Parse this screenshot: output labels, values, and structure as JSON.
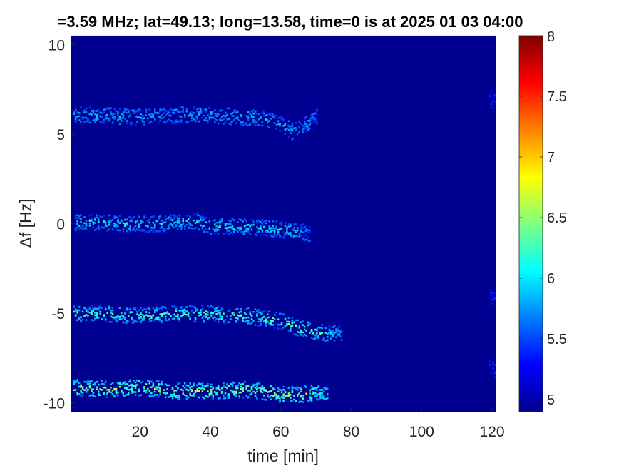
{
  "chart_data": {
    "type": "heatmap",
    "title": "=3.59 MHz;  lat=49.13; long=13.58, time=0 is at 2025 01 03 04:00",
    "xlabel": "time [min]",
    "ylabel": "Δf [Hz]",
    "xlim": [
      0.5,
      121
    ],
    "ylim": [
      -10.5,
      10.5
    ],
    "xticks": [
      20,
      40,
      60,
      80,
      100,
      120
    ],
    "yticks": [
      -10,
      -5,
      0,
      5,
      10
    ],
    "background_value": 4.95,
    "colorbar": {
      "colormap": "jet",
      "clim": [
        4.9,
        8
      ],
      "ticks": [
        5,
        5.5,
        6,
        6.5,
        7,
        7.5,
        8
      ]
    },
    "traces": [
      {
        "name": "",
        "points": [
          [
            1,
            6.1
          ],
          [
            10,
            6.1
          ],
          [
            20,
            6.0
          ],
          [
            30,
            6.1
          ],
          [
            40,
            6.1
          ],
          [
            50,
            6.0
          ],
          [
            55,
            5.9
          ],
          [
            60,
            5.6
          ],
          [
            63,
            5.2
          ],
          [
            65,
            5.3
          ],
          [
            67,
            5.6
          ],
          [
            70,
            6.0
          ]
        ],
        "intensity": [
          5.55,
          5.9
        ]
      },
      {
        "name": "",
        "points": [
          [
            1,
            0.1
          ],
          [
            10,
            0.1
          ],
          [
            20,
            0.0
          ],
          [
            30,
            0.1
          ],
          [
            35,
            0.2
          ],
          [
            40,
            -0.1
          ],
          [
            50,
            -0.1
          ],
          [
            60,
            -0.3
          ],
          [
            65,
            -0.4
          ],
          [
            68,
            -0.5
          ]
        ],
        "intensity": [
          5.5,
          6.2
        ]
      },
      {
        "name": "",
        "points": [
          [
            1,
            -5.0
          ],
          [
            10,
            -5.0
          ],
          [
            20,
            -5.1
          ],
          [
            30,
            -5.0
          ],
          [
            40,
            -5.0
          ],
          [
            50,
            -5.1
          ],
          [
            60,
            -5.4
          ],
          [
            65,
            -5.8
          ],
          [
            70,
            -6.0
          ],
          [
            77,
            -6.1
          ]
        ],
        "intensity": [
          5.6,
          6.5
        ]
      },
      {
        "name": "",
        "points": [
          [
            1,
            -9.1
          ],
          [
            10,
            -9.2
          ],
          [
            20,
            -9.1
          ],
          [
            30,
            -9.3
          ],
          [
            40,
            -9.3
          ],
          [
            50,
            -9.2
          ],
          [
            60,
            -9.5
          ],
          [
            65,
            -9.5
          ],
          [
            70,
            -9.4
          ],
          [
            73,
            -9.4
          ]
        ],
        "intensity": [
          5.8,
          6.7
        ]
      },
      {
        "name": "",
        "points": [
          [
            119,
            7.0
          ],
          [
            120,
            6.9
          ],
          [
            121,
            6.8
          ]
        ],
        "intensity": [
          5.3,
          5.6
        ]
      },
      {
        "name": "",
        "points": [
          [
            119,
            -4.0
          ],
          [
            120,
            -4.1
          ],
          [
            121,
            -4.2
          ]
        ],
        "intensity": [
          5.3,
          5.7
        ]
      },
      {
        "name": "",
        "points": [
          [
            119,
            -7.8
          ],
          [
            120,
            -8.0
          ],
          [
            121,
            -8.2
          ]
        ],
        "intensity": [
          5.3,
          5.6
        ]
      }
    ]
  }
}
